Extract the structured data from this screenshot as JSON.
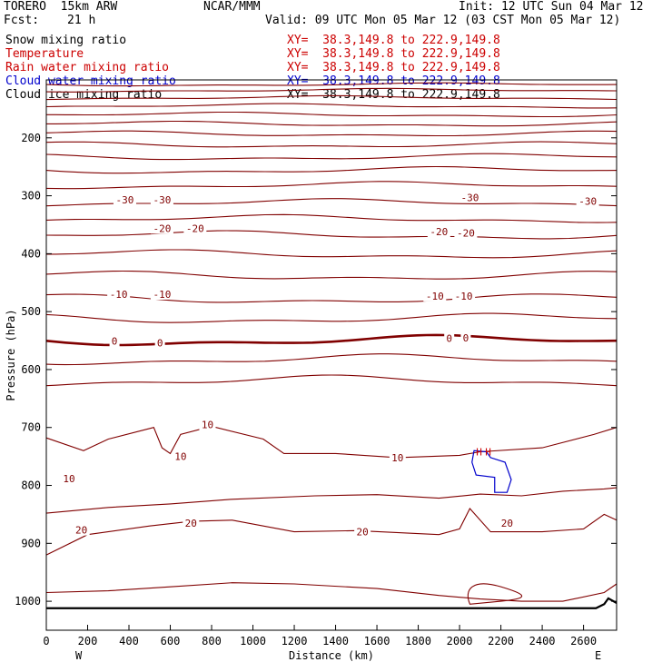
{
  "header": {
    "model": "TORERO  15km ARW",
    "center": "NCAR/MMM",
    "init": "Init: 12 UTC Sun 04 Mar 12",
    "fcst_label": "Fcst:",
    "fcst_value": "21 h",
    "valid": "Valid: 09 UTC Mon 05 Mar 12 (03 CST Mon 05 Mar 12)"
  },
  "legend": [
    {
      "name": "Snow mixing ratio",
      "color": "#000000",
      "xy": "XY=  38.3,149.8 to 222.9,149.8",
      "xy_color": "#cc0000"
    },
    {
      "name": "Temperature",
      "color": "#cc0000",
      "xy": "XY=  38.3,149.8 to 222.9,149.8",
      "xy_color": "#cc0000"
    },
    {
      "name": "Rain water mixing ratio",
      "color": "#cc0000",
      "xy": "XY=  38.3,149.8 to 222.9,149.8",
      "xy_color": "#cc0000"
    },
    {
      "name": "Cloud water mixing ratio",
      "color": "#0000cc",
      "xy": "XY=  38.3,149.8 to 222.9,149.8",
      "xy_color": "#0000cc"
    },
    {
      "name": "Cloud ice mixing ratio",
      "color": "#000000",
      "xy": "XY=  38.3,149.8 to 222.9,149.8",
      "xy_color": "#000000"
    }
  ],
  "chart_data": {
    "type": "line",
    "xlabel": "Distance (km)",
    "ylabel": "Pressure (hPa)",
    "xlim": [
      0,
      2760
    ],
    "ylim": [
      1050,
      100
    ],
    "x_ticks": [
      0,
      200,
      400,
      600,
      800,
      1000,
      1200,
      1400,
      1600,
      1800,
      2000,
      2200,
      2400,
      2600
    ],
    "y_ticks": [
      200,
      300,
      400,
      500,
      600,
      700,
      800,
      900,
      1000
    ],
    "x_end_labels": {
      "left": "W",
      "right": "E"
    },
    "colors": {
      "temperature": "#800000",
      "cloud_water": "#0000cc",
      "ground": "#000000"
    },
    "temperature_contour_labels": [
      {
        "value": "-30",
        "x": 380,
        "p": 307
      },
      {
        "value": "-30",
        "x": 560,
        "p": 307
      },
      {
        "value": "-30",
        "x": 2050,
        "p": 303
      },
      {
        "value": "-30",
        "x": 2620,
        "p": 309
      },
      {
        "value": "-20",
        "x": 560,
        "p": 356
      },
      {
        "value": "-20",
        "x": 720,
        "p": 356
      },
      {
        "value": "-20",
        "x": 1900,
        "p": 362
      },
      {
        "value": "-20",
        "x": 2030,
        "p": 364
      },
      {
        "value": "-10",
        "x": 350,
        "p": 470
      },
      {
        "value": "-10",
        "x": 560,
        "p": 470
      },
      {
        "value": "-10",
        "x": 1880,
        "p": 473
      },
      {
        "value": "-10",
        "x": 2020,
        "p": 473
      },
      {
        "value": "0",
        "x": 330,
        "p": 551
      },
      {
        "value": "0",
        "x": 550,
        "p": 554
      },
      {
        "value": "0",
        "x": 1950,
        "p": 546
      },
      {
        "value": "0",
        "x": 2030,
        "p": 545
      },
      {
        "value": "10",
        "x": 780,
        "p": 695
      },
      {
        "value": "10",
        "x": 650,
        "p": 750
      },
      {
        "value": "10",
        "x": 1700,
        "p": 752
      },
      {
        "value": "10",
        "x": 110,
        "p": 788
      },
      {
        "value": "20",
        "x": 170,
        "p": 877
      },
      {
        "value": "20",
        "x": 700,
        "p": 865
      },
      {
        "value": "20",
        "x": 1530,
        "p": 880
      },
      {
        "value": "20",
        "x": 2230,
        "p": 865
      }
    ],
    "annotations": [
      "H",
      "H"
    ]
  }
}
